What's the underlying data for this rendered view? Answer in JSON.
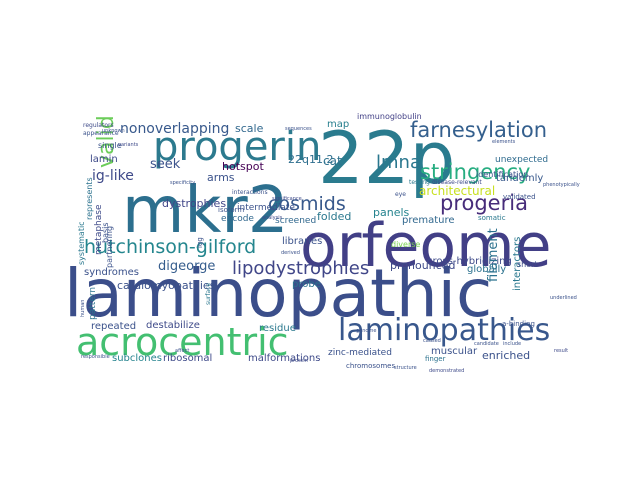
{
  "words": [
    {
      "text": "laminopathic",
      "color": "#3b4e8a"
    },
    {
      "text": "22p",
      "color": "#2a7b8e"
    },
    {
      "text": "orfeome",
      "color": "#423f86"
    },
    {
      "text": "mkr2",
      "color": "#2c6f8e"
    },
    {
      "text": "progerin",
      "color": "#2c7a8e"
    },
    {
      "text": "acrocentric",
      "color": "#43bf71"
    },
    {
      "text": "laminopathies",
      "color": "#38578c"
    },
    {
      "text": "farnesylation",
      "color": "#345f8d"
    },
    {
      "text": "lmna",
      "color": "#2a778e"
    },
    {
      "text": "stringency",
      "color": "#27ad81"
    },
    {
      "text": "progeria",
      "color": "#472c7a"
    },
    {
      "text": "hutchinson-gilford",
      "color": "#24868e"
    },
    {
      "text": "lipodystrophies",
      "color": "#404688"
    },
    {
      "text": "cosmids",
      "color": "#38598c"
    },
    {
      "text": "nonoverlapping",
      "color": "#38598c"
    },
    {
      "text": "seek",
      "color": "#3b528b"
    },
    {
      "text": "ig-like",
      "color": "#3e4989"
    },
    {
      "text": "22q11.2",
      "color": "#2e6e8e"
    },
    {
      "text": "digeorge",
      "color": "#365d8d"
    },
    {
      "text": "valid",
      "color": "#6ccd5a"
    },
    {
      "text": "scale",
      "color": "#31688e"
    },
    {
      "text": "map",
      "color": "#277f8e"
    },
    {
      "text": "immunoglobulin",
      "color": "#424086"
    },
    {
      "text": "tandemly",
      "color": "#38598c"
    },
    {
      "text": "unexpected",
      "color": "#2f6b8e"
    },
    {
      "text": "architectural",
      "color": "#c8e020"
    },
    {
      "text": "hotspot",
      "color": "#440154"
    },
    {
      "text": "cat",
      "color": "#2d718e"
    },
    {
      "text": "arms",
      "color": "#3b528b"
    },
    {
      "text": "folded",
      "color": "#2a788e"
    },
    {
      "text": "panels",
      "color": "#25838e"
    },
    {
      "text": "premature",
      "color": "#31688e"
    },
    {
      "text": "lamin",
      "color": "#3e4a89"
    },
    {
      "text": "dystrophies",
      "color": "#404688"
    },
    {
      "text": "intermediate",
      "color": "#3b528b"
    },
    {
      "text": "screened",
      "color": "#31688e"
    },
    {
      "text": "libraries",
      "color": "#3b528b"
    },
    {
      "text": "diverse",
      "color": "#7ad151"
    },
    {
      "text": "pronounced",
      "color": "#3e4a89"
    },
    {
      "text": "cardiomyopathies",
      "color": "#3b528b"
    },
    {
      "text": "cross-hybridizing",
      "color": "#3e4a89"
    },
    {
      "text": "globally",
      "color": "#2c728e"
    },
    {
      "text": "filament",
      "color": "#2c728e"
    },
    {
      "text": "syndromes",
      "color": "#3b528b"
    },
    {
      "text": "encode",
      "color": "#31688e"
    },
    {
      "text": "probe",
      "color": "#2c728e"
    },
    {
      "text": "interactors",
      "color": "#2a788e"
    },
    {
      "text": "repeated",
      "color": "#3b528b"
    },
    {
      "text": "destabilize",
      "color": "#3e4a89"
    },
    {
      "text": "residue",
      "color": "#2a788e"
    },
    {
      "text": "enriched",
      "color": "#3b528b"
    },
    {
      "text": "subclones",
      "color": "#25838e"
    },
    {
      "text": "ribosomal",
      "color": "#3e4a89"
    },
    {
      "text": "malformations",
      "color": "#3e4a89"
    },
    {
      "text": "zinc-mediated",
      "color": "#3b528b"
    },
    {
      "text": "muscular",
      "color": "#3b528b"
    },
    {
      "text": "metaphase",
      "color": "#3e4a89"
    },
    {
      "text": "systematic",
      "color": "#2a788e"
    },
    {
      "text": "partnering",
      "color": "#3b528b"
    },
    {
      "text": "represents",
      "color": "#2c728e"
    },
    {
      "text": "identification",
      "color": "#3b528b"
    },
    {
      "text": "validated",
      "color": "#3b528b"
    },
    {
      "text": "somatic",
      "color": "#2a788e"
    },
    {
      "text": "basis",
      "color": "#3b528b"
    },
    {
      "text": "pattern",
      "color": "#2c728e"
    },
    {
      "text": "short",
      "color": "#3e4a89"
    },
    {
      "text": "a-binding",
      "color": "#3b528b"
    },
    {
      "text": "chromosomes",
      "color": "#3b528b"
    },
    {
      "text": "disease-relevant",
      "color": "#3e4a89"
    },
    {
      "text": "isoform",
      "color": "#3b528b"
    },
    {
      "text": "finger",
      "color": "#2c728e"
    },
    {
      "text": "eye",
      "color": "#3b528b"
    },
    {
      "text": "testing",
      "color": "#2a788e"
    },
    {
      "text": "single",
      "color": "#3b528b"
    },
    {
      "text": "igg",
      "color": "#3b528b"
    },
    {
      "text": "surface",
      "color": "#2a788e"
    },
    {
      "text": "regulators",
      "color": "#3e4a89"
    },
    {
      "text": "appearance",
      "color": "#3b528b"
    },
    {
      "text": "interactions",
      "color": "#3b528b"
    },
    {
      "text": "analysis",
      "color": "#3e4a89"
    },
    {
      "text": "candidate",
      "color": "#3b528b"
    },
    {
      "text": "include",
      "color": "#3b528b"
    },
    {
      "text": "result",
      "color": "#3e4a89"
    },
    {
      "text": "caused",
      "color": "#3b528b"
    },
    {
      "text": "human",
      "color": "#3b528b"
    },
    {
      "text": "structure",
      "color": "#3b528b"
    },
    {
      "text": "demonstrated",
      "color": "#3e4a89"
    },
    {
      "text": "responsible",
      "color": "#3b528b"
    },
    {
      "text": "underlined",
      "color": "#3b528b"
    },
    {
      "text": "elements",
      "color": "#3b528b"
    },
    {
      "text": "sequences",
      "color": "#3b528b"
    },
    {
      "text": "affect",
      "color": "#3b528b"
    },
    {
      "text": "protein",
      "color": "#3e4a89"
    },
    {
      "text": "genome",
      "color": "#3b528b"
    },
    {
      "text": "phenotypically",
      "color": "#3b528b"
    },
    {
      "text": "derived",
      "color": "#3b528b"
    },
    {
      "text": "variants",
      "color": "#3e4a89"
    },
    {
      "text": "unknown",
      "color": "#3b528b"
    },
    {
      "text": "specificity",
      "color": "#3b528b"
    },
    {
      "text": "significance",
      "color": "#3e4a89"
    },
    {
      "text": "relationship",
      "color": "#3b528b"
    }
  ]
}
